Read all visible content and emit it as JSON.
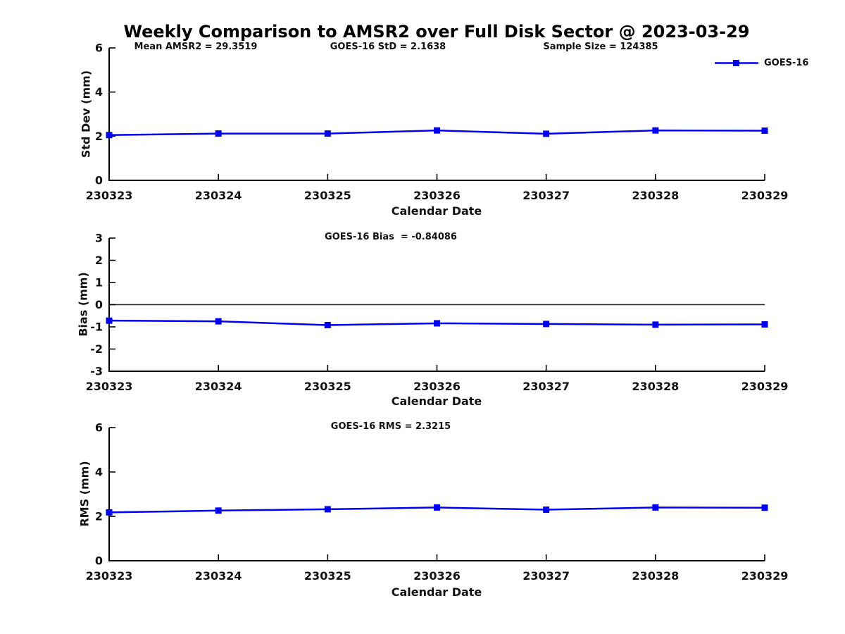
{
  "title": "Weekly Comparison to AMSR2 over Full Disk Sector @ 2023-03-29",
  "legend": {
    "label": "GOES-16"
  },
  "colors": {
    "series": "#0000ee",
    "axis": "#000000",
    "zero_line": "#222222"
  },
  "chart_data": [
    {
      "type": "line",
      "annotations": [
        {
          "text": "Mean AMSR2 = 29.3519"
        },
        {
          "text": "GOES-16 StD = 2.1638"
        },
        {
          "text": "Sample Size = 124385"
        }
      ],
      "x": [
        "230323",
        "230324",
        "230325",
        "230326",
        "230327",
        "230328",
        "230329"
      ],
      "series": [
        {
          "name": "GOES-16",
          "values": [
            2.05,
            2.12,
            2.12,
            2.26,
            2.11,
            2.26,
            2.25
          ]
        }
      ],
      "xlabel": "Calendar Date",
      "ylabel": "Std Dev (mm)",
      "ylim": [
        0,
        6
      ],
      "yticks": [
        0,
        2,
        4,
        6
      ],
      "grid": false,
      "legend_position": "top-right-outside"
    },
    {
      "type": "line",
      "annotations": [
        {
          "text": "GOES-16 Bias  = -0.84086"
        }
      ],
      "x": [
        "230323",
        "230324",
        "230325",
        "230326",
        "230327",
        "230328",
        "230329"
      ],
      "series": [
        {
          "name": "GOES-16",
          "values": [
            -0.72,
            -0.75,
            -0.92,
            -0.84,
            -0.87,
            -0.9,
            -0.89
          ]
        }
      ],
      "xlabel": "Calendar Date",
      "ylabel": "Bias (mm)",
      "ylim": [
        -3,
        3
      ],
      "yticks": [
        3,
        2,
        1,
        0,
        -1,
        -2,
        -3
      ],
      "zero_line": true,
      "grid": false
    },
    {
      "type": "line",
      "annotations": [
        {
          "text": "GOES-16 RMS = 2.3215"
        }
      ],
      "x": [
        "230323",
        "230324",
        "230325",
        "230326",
        "230327",
        "230328",
        "230329"
      ],
      "series": [
        {
          "name": "GOES-16",
          "values": [
            2.18,
            2.26,
            2.32,
            2.4,
            2.3,
            2.4,
            2.39
          ]
        }
      ],
      "xlabel": "Calendar Date",
      "ylabel": "RMS (mm)",
      "ylim": [
        0,
        6
      ],
      "yticks": [
        0,
        2,
        4,
        6
      ],
      "grid": false
    }
  ]
}
